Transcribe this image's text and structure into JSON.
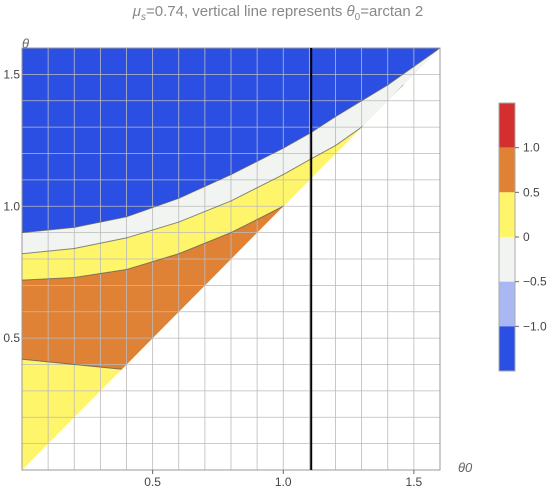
{
  "chart_data": {
    "type": "contour",
    "title_parts": {
      "mu": "μ",
      "mu_sub": "s",
      "mu_value": "=0.74, vertical line represents ",
      "theta": "θ",
      "theta_sub": "0",
      "theta_tail": "=arctan 2"
    },
    "xlabel": "θ0",
    "ylabel": "θ",
    "xlim": [
      0,
      1.6
    ],
    "ylim": [
      0,
      1.6
    ],
    "x_ticks": [
      "0.5",
      "1.0",
      "1.5"
    ],
    "y_ticks": [
      "0.5",
      "1.0",
      "1.5"
    ],
    "grid": true,
    "vertical_line_x": 1.107,
    "region_definition": "theta > theta0 (upper-left triangle)",
    "levels": [
      {
        "range": [
          -1.5,
          -1.0
        ],
        "color": "#2B4FE3"
      },
      {
        "range": [
          -1.0,
          -0.5
        ],
        "color": "#A9B8F2"
      },
      {
        "range": [
          -0.5,
          0.0
        ],
        "color": "#F1F4F1"
      },
      {
        "range": [
          0.0,
          0.5
        ],
        "color": "#FFF56A"
      },
      {
        "range": [
          0.5,
          1.0
        ],
        "color": "#E08236"
      },
      {
        "range": [
          1.0,
          1.5
        ],
        "color": "#D32F2F"
      }
    ],
    "contour_boundaries": [
      {
        "level": 0.5,
        "points": [
          [
            0,
            0.42
          ],
          [
            0.4,
            0.38
          ],
          [
            1.107,
            1.07
          ],
          [
            1.46,
            1.46
          ]
        ]
      },
      {
        "level": 0.0,
        "points": [
          [
            0,
            0.72
          ],
          [
            0.2,
            0.73
          ],
          [
            0.4,
            0.76
          ],
          [
            0.6,
            0.82
          ],
          [
            0.8,
            0.9
          ],
          [
            1.0,
            1.0
          ],
          [
            1.107,
            1.06
          ],
          [
            1.2,
            1.12
          ],
          [
            1.4,
            1.28
          ],
          [
            1.6,
            1.45
          ]
        ]
      },
      {
        "level": -0.5,
        "points": [
          [
            0,
            0.82
          ],
          [
            0.2,
            0.84
          ],
          [
            0.4,
            0.88
          ],
          [
            0.6,
            0.94
          ],
          [
            0.8,
            1.02
          ],
          [
            1.0,
            1.12
          ],
          [
            1.107,
            1.18
          ],
          [
            1.2,
            1.23
          ],
          [
            1.4,
            1.37
          ],
          [
            1.6,
            1.52
          ]
        ]
      },
      {
        "level": -1.0,
        "points": [
          [
            0,
            0.9
          ],
          [
            0.2,
            0.92
          ],
          [
            0.4,
            0.96
          ],
          [
            0.6,
            1.03
          ],
          [
            0.8,
            1.12
          ],
          [
            1.0,
            1.22
          ],
          [
            1.107,
            1.28
          ],
          [
            1.2,
            1.34
          ],
          [
            1.4,
            1.46
          ],
          [
            1.6,
            1.6
          ]
        ]
      }
    ],
    "legend": {
      "placement": "right",
      "labels": [
        "1.0",
        "0.5",
        "0",
        "−0.5",
        "−1.0"
      ]
    }
  }
}
